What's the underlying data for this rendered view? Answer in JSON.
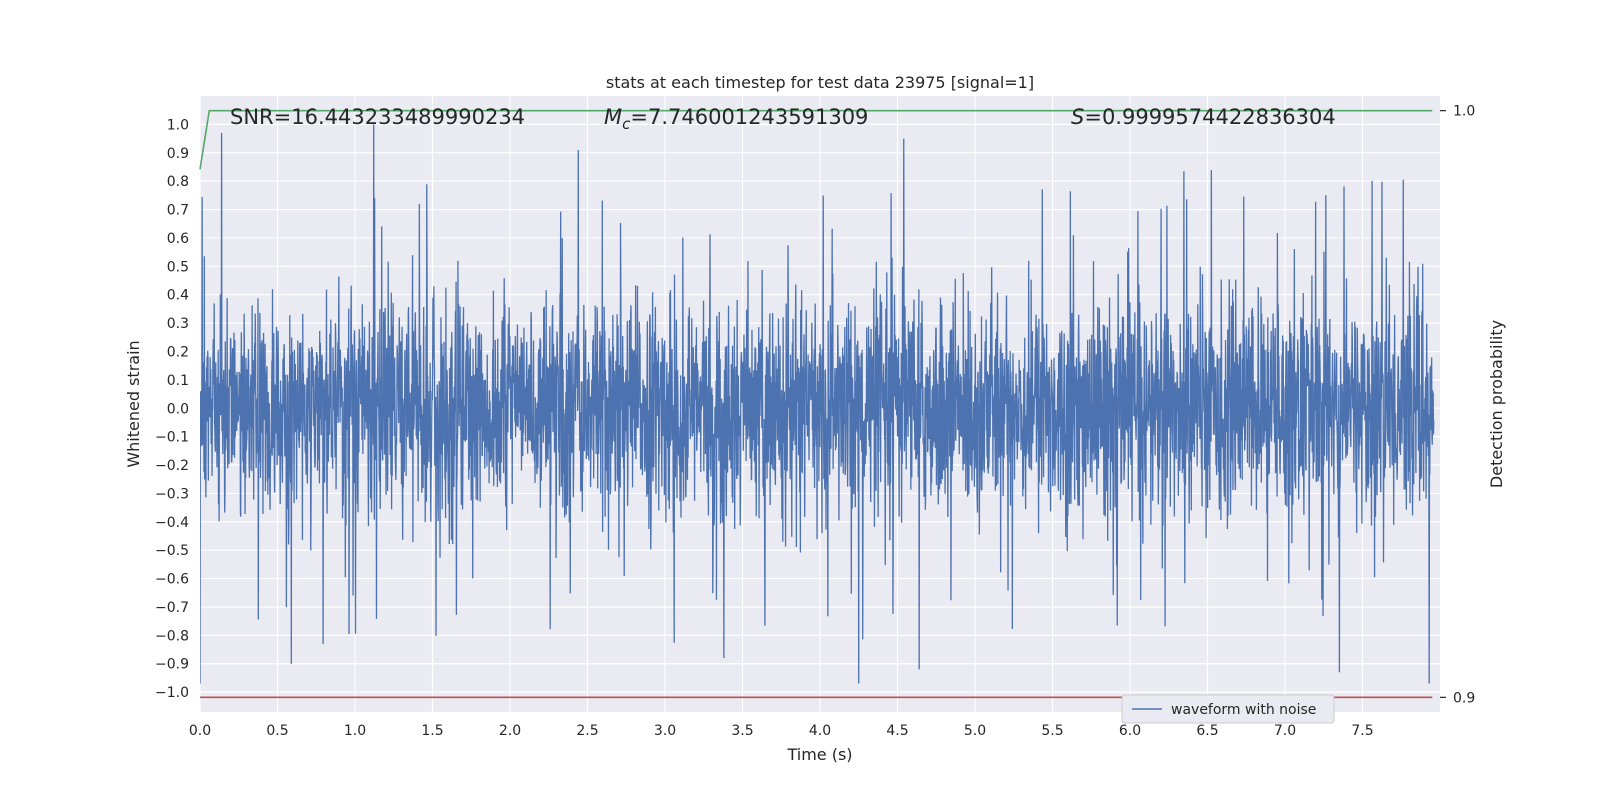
{
  "chart_data": {
    "type": "line",
    "title": "stats at each timestep for test data 23975 [signal=1]",
    "xlabel": "Time (s)",
    "ylabel": "Whitened strain",
    "y2label": "Detection probability",
    "xlim": [
      0.0,
      8.0
    ],
    "ylim": [
      -1.07,
      1.1
    ],
    "y2lim": [
      0.8975,
      1.0025
    ],
    "x_ticks": [
      0.0,
      0.5,
      1.0,
      1.5,
      2.0,
      2.5,
      3.0,
      3.5,
      4.0,
      4.5,
      5.0,
      5.5,
      6.0,
      6.5,
      7.0,
      7.5
    ],
    "x_tick_labels": [
      "0.0",
      "0.5",
      "1.0",
      "1.5",
      "2.0",
      "2.5",
      "3.0",
      "3.5",
      "4.0",
      "4.5",
      "5.0",
      "5.5",
      "6.0",
      "6.5",
      "7.0",
      "7.5"
    ],
    "y_ticks": [
      1.0,
      0.9,
      0.8,
      0.7,
      0.6,
      0.5,
      0.4,
      0.3,
      0.2,
      0.1,
      0.0,
      -0.1,
      -0.2,
      -0.3,
      -0.4,
      -0.5,
      -0.6,
      -0.7,
      -0.8,
      -0.9,
      -1.0
    ],
    "y_tick_labels": [
      "1.0",
      "0.9",
      "0.8",
      "0.7",
      "0.6",
      "0.5",
      "0.4",
      "0.3",
      "0.2",
      "0.1",
      "0.0",
      "−0.1",
      "−0.2",
      "−0.3",
      "−0.4",
      "−0.5",
      "−0.6",
      "−0.7",
      "−0.8",
      "−0.9",
      "−1.0"
    ],
    "y2_ticks": [
      1.0,
      0.9
    ],
    "y2_tick_labels": [
      "1.0",
      "0.9"
    ],
    "grid": true,
    "legend_position": "bottom-right",
    "series": [
      {
        "name": "waveform with noise",
        "color": "#4c72b0",
        "axis": "left",
        "sample_count": 4000,
        "envelope_max": 0.55,
        "envelope_min": -0.55,
        "spikes": [
          {
            "x": 0.14,
            "y": 0.97
          },
          {
            "x": 1.12,
            "y": 1.0
          },
          {
            "x": 2.44,
            "y": 0.91
          },
          {
            "x": 4.54,
            "y": 0.95
          },
          {
            "x": 7.93,
            "y": 0.93
          },
          {
            "x": 0.0,
            "y": -0.97
          },
          {
            "x": 4.25,
            "y": -0.97
          },
          {
            "x": 7.93,
            "y": -0.97
          },
          {
            "x": 0.59,
            "y": -0.9
          },
          {
            "x": 3.38,
            "y": -0.88
          },
          {
            "x": 7.35,
            "y": -0.93
          },
          {
            "x": 4.64,
            "y": -0.92
          }
        ]
      },
      {
        "name": "",
        "color": "#55a868",
        "axis": "right",
        "x": [
          0.0,
          0.06,
          7.95
        ],
        "y": [
          0.99,
          1.0,
          1.0
        ]
      },
      {
        "name": "",
        "color": "#c44e52",
        "axis": "right",
        "x": [
          0.0,
          7.95
        ],
        "y": [
          0.9,
          0.9
        ]
      }
    ],
    "annotations": [
      {
        "id": "snr",
        "prefix": "SNR",
        "text": "SNR=16.443233489990234"
      },
      {
        "id": "mc",
        "symbol": "M",
        "subscript": "c",
        "value": "=7.746001243591309"
      },
      {
        "id": "s",
        "symbol": "S",
        "value": "=0.9999574422836304"
      }
    ]
  }
}
